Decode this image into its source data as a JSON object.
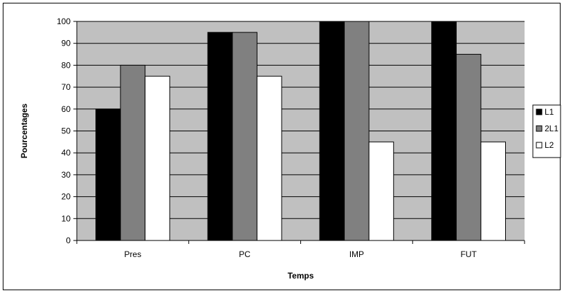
{
  "chart_data": {
    "type": "bar",
    "categories": [
      "Pres",
      "PC",
      "IMP",
      "FUT"
    ],
    "series": [
      {
        "name": "L1",
        "values": [
          60,
          95,
          100,
          100
        ],
        "color": "#000000"
      },
      {
        "name": "2L1",
        "values": [
          80,
          95,
          100,
          85
        ],
        "color": "#808080"
      },
      {
        "name": "L2",
        "values": [
          75,
          75,
          45,
          45
        ],
        "color": "#ffffff"
      }
    ],
    "xlabel": "Temps",
    "ylabel": "Pourcentages",
    "ylim": [
      0,
      100
    ],
    "yticks": [
      0,
      10,
      20,
      30,
      40,
      50,
      60,
      70,
      80,
      90,
      100
    ],
    "grid": true,
    "legend": "right",
    "plot_background": "#c0c0c0"
  }
}
